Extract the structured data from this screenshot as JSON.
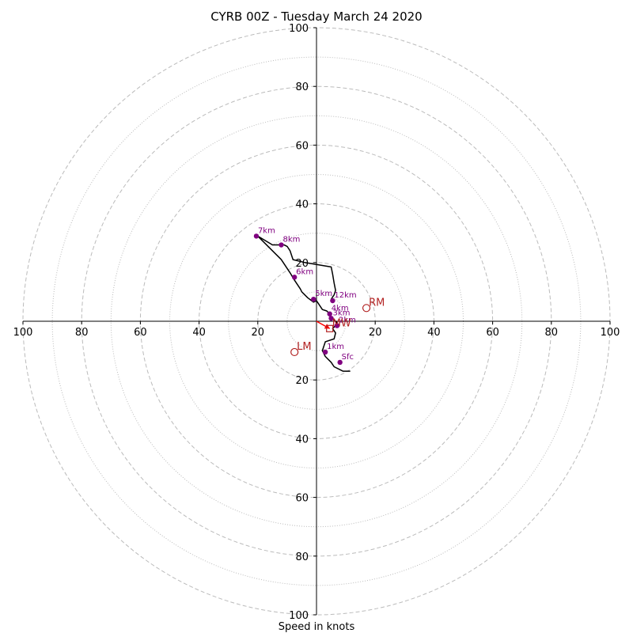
{
  "chart_data": {
    "type": "hodograph",
    "title": "CYRB 00Z - Tuesday March 24 2020",
    "xlabel": "Speed in knots",
    "range_max": 100,
    "ring_labels": [
      {
        "value": 20,
        "text": "20"
      },
      {
        "value": 40,
        "text": "40"
      },
      {
        "value": 60,
        "text": "60"
      },
      {
        "value": 80,
        "text": "80"
      },
      {
        "value": 100,
        "text": "100"
      }
    ],
    "rings_major": [
      20,
      40,
      60,
      80,
      100
    ],
    "rings_minor": [
      10,
      30,
      50,
      70,
      90
    ],
    "grid": true,
    "colors": {
      "trace": "#000000",
      "height_marker": "#800080",
      "storm_motion": "#b22222",
      "mean_wind_arrow": "#ff0000",
      "grid": "#bbbbbb"
    },
    "trace_points": [
      [
        11.5,
        -17
      ],
      [
        9,
        -17
      ],
      [
        6,
        -15.5
      ],
      [
        5,
        -14
      ],
      [
        3,
        -12
      ],
      [
        2,
        -10
      ],
      [
        3,
        -7
      ],
      [
        6,
        -6
      ],
      [
        6.5,
        -4
      ],
      [
        5.5,
        -2.5
      ],
      [
        6.5,
        -1.5
      ],
      [
        7,
        -0.5
      ],
      [
        6,
        0.5
      ],
      [
        5,
        1
      ],
      [
        4.5,
        2
      ],
      [
        4.5,
        2.5
      ],
      [
        3.5,
        3.5
      ],
      [
        2,
        4
      ],
      [
        0,
        7
      ],
      [
        -1,
        6.5
      ],
      [
        -3,
        8
      ],
      [
        -5,
        10
      ],
      [
        -5.5,
        11
      ],
      [
        -7.5,
        14
      ],
      [
        -9,
        16.5
      ],
      [
        -12,
        21
      ],
      [
        -20,
        29
      ],
      [
        -15,
        26
      ],
      [
        -11,
        26
      ],
      [
        -10,
        25.5
      ],
      [
        -9,
        24
      ],
      [
        -8,
        21
      ],
      [
        -4,
        20
      ],
      [
        -1,
        19.5
      ],
      [
        5,
        18.5
      ],
      [
        5.5,
        16
      ],
      [
        6,
        13
      ],
      [
        6.5,
        10.5
      ],
      [
        6,
        9
      ],
      [
        5,
        7.5
      ]
    ],
    "height_markers": [
      {
        "label": "Sfc",
        "u": 8,
        "v": -14
      },
      {
        "label": "1km",
        "u": 3,
        "v": -10.5
      },
      {
        "label": "2km",
        "u": 7,
        "v": -1.5
      },
      {
        "label": "3km",
        "u": 5,
        "v": 1
      },
      {
        "label": "4km",
        "u": 4.5,
        "v": 2.5
      },
      {
        "label": "5km",
        "u": -1,
        "v": 7.5
      },
      {
        "label": "6km",
        "u": -7.5,
        "v": 15
      },
      {
        "label": "7km",
        "u": -20.5,
        "v": 29
      },
      {
        "label": "8km",
        "u": -12,
        "v": 26
      },
      {
        "label": "12km",
        "u": 5.5,
        "v": 7
      }
    ],
    "storm_motion": [
      {
        "label": "RM",
        "u": 17,
        "v": 4.5,
        "shape": "circle"
      },
      {
        "label": "LM",
        "u": -7.5,
        "v": -10.5,
        "shape": "circle"
      },
      {
        "label": "MW",
        "u": 4.5,
        "v": -2.5,
        "shape": "square"
      }
    ],
    "mean_wind_arrow": {
      "from": [
        0,
        0
      ],
      "to": [
        4.5,
        -2.5
      ]
    }
  }
}
